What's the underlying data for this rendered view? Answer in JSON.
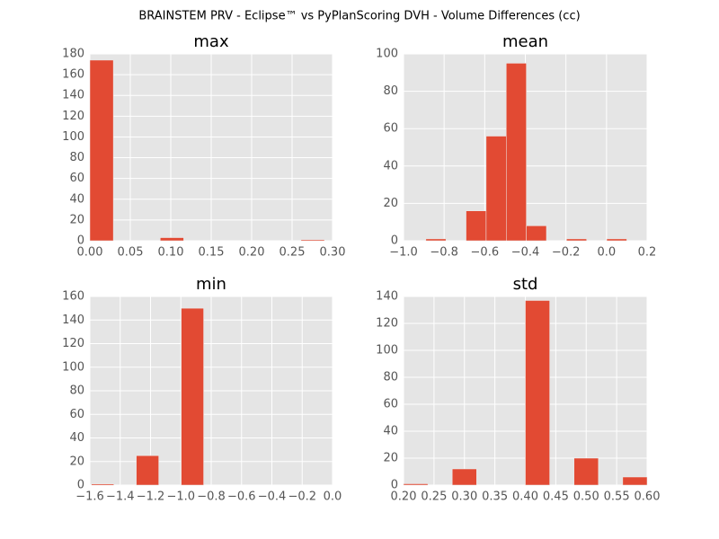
{
  "title": "BRAINSTEM PRV - Eclipse™ vs PyPlanScoring DVH - Volume Differences (cc)",
  "chart_data": [
    {
      "type": "histogram",
      "title": "max",
      "color": "#e24a33",
      "grid": true,
      "bins": [
        0.0,
        0.029,
        0.058,
        0.087,
        0.116,
        0.145,
        0.174,
        0.203,
        0.232,
        0.261,
        0.29
      ],
      "values": [
        174,
        0,
        0,
        3,
        0,
        0,
        0,
        0,
        0,
        1
      ],
      "xlim": [
        0,
        0.3
      ],
      "ylim": [
        0,
        180
      ],
      "xticks": [
        {
          "value": 0,
          "label": "0.00"
        },
        {
          "value": 0.05,
          "label": "0.05"
        },
        {
          "value": 0.1,
          "label": "0.10"
        },
        {
          "value": 0.15,
          "label": "0.15"
        },
        {
          "value": 0.2,
          "label": "0.20"
        },
        {
          "value": 0.25,
          "label": "0.25"
        },
        {
          "value": 0.3,
          "label": "0.30"
        }
      ],
      "yticks": [
        0,
        20,
        40,
        60,
        80,
        100,
        120,
        140,
        160,
        180
      ]
    },
    {
      "type": "histogram",
      "title": "mean",
      "color": "#e24a33",
      "grid": true,
      "bins": [
        -0.89,
        -0.791,
        -0.692,
        -0.593,
        -0.494,
        -0.395,
        -0.296,
        -0.197,
        -0.098,
        0.001,
        0.1
      ],
      "values": [
        1,
        0,
        16,
        56,
        95,
        8,
        0,
        1,
        0,
        1
      ],
      "xlim": [
        -1.0,
        0.2
      ],
      "ylim": [
        0,
        100
      ],
      "xticks": [
        {
          "value": -1.0,
          "label": "−1.0"
        },
        {
          "value": -0.8,
          "label": "−0.8"
        },
        {
          "value": -0.6,
          "label": "−0.6"
        },
        {
          "value": -0.4,
          "label": "−0.4"
        },
        {
          "value": -0.2,
          "label": "−0.2"
        },
        {
          "value": 0,
          "label": "0.0"
        },
        {
          "value": 0.2,
          "label": "0.2"
        }
      ],
      "yticks": [
        0,
        20,
        40,
        60,
        80,
        100
      ]
    },
    {
      "type": "histogram",
      "title": "min",
      "color": "#e24a33",
      "grid": true,
      "bins": [
        -1.59,
        -1.442,
        -1.294,
        -1.146,
        -0.998,
        -0.85,
        -0.702,
        -0.554,
        -0.406,
        -0.258,
        -0.11
      ],
      "values": [
        1,
        0,
        25,
        0,
        150,
        0,
        0,
        0,
        0,
        0
      ],
      "xlim": [
        -1.6,
        0
      ],
      "ylim": [
        0,
        160
      ],
      "xticks": [
        {
          "value": -1.6,
          "label": "−1.6"
        },
        {
          "value": -1.4,
          "label": "−1.4"
        },
        {
          "value": -1.2,
          "label": "−1.2"
        },
        {
          "value": -1.0,
          "label": "−1.0"
        },
        {
          "value": -0.8,
          "label": "−0.8"
        },
        {
          "value": -0.6,
          "label": "−0.6"
        },
        {
          "value": -0.4,
          "label": "−0.4"
        },
        {
          "value": -0.2,
          "label": "−0.2"
        },
        {
          "value": 0,
          "label": "0.0"
        }
      ],
      "yticks": [
        0,
        20,
        40,
        60,
        80,
        100,
        120,
        140,
        160
      ]
    },
    {
      "type": "histogram",
      "title": "std",
      "color": "#e24a33",
      "grid": true,
      "bins": [
        0.2,
        0.24,
        0.28,
        0.32,
        0.36,
        0.4,
        0.44,
        0.48,
        0.52,
        0.56,
        0.6
      ],
      "values": [
        1,
        0,
        12,
        0,
        0,
        137,
        0,
        20,
        0,
        6
      ],
      "xlim": [
        0.2,
        0.6
      ],
      "ylim": [
        0,
        140
      ],
      "xticks": [
        {
          "value": 0.2,
          "label": "0.20"
        },
        {
          "value": 0.25,
          "label": "0.25"
        },
        {
          "value": 0.3,
          "label": "0.30"
        },
        {
          "value": 0.35,
          "label": "0.35"
        },
        {
          "value": 0.4,
          "label": "0.40"
        },
        {
          "value": 0.45,
          "label": "0.45"
        },
        {
          "value": 0.5,
          "label": "0.50"
        },
        {
          "value": 0.55,
          "label": "0.55"
        },
        {
          "value": 0.6,
          "label": "0.60"
        }
      ],
      "yticks": [
        0,
        20,
        40,
        60,
        80,
        100,
        120,
        140
      ]
    }
  ]
}
